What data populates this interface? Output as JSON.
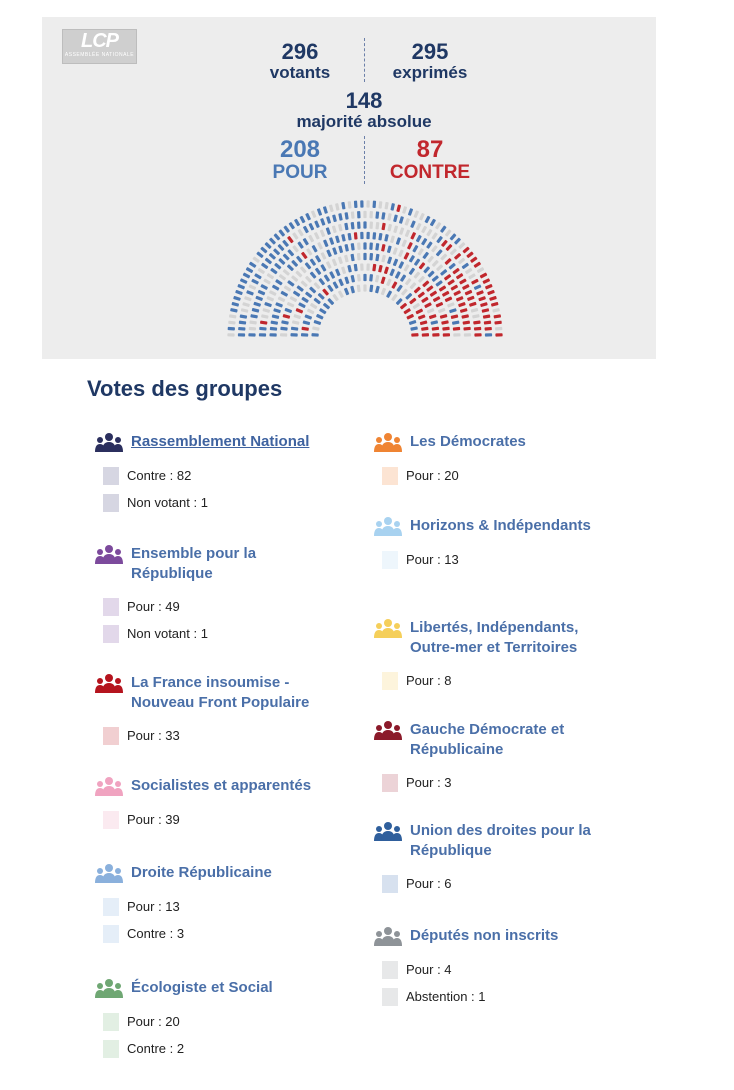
{
  "header": {
    "logo_text": "LCP",
    "logo_subtext": "ASSEMBLÉE NATIONALE",
    "votants": {
      "value": "296",
      "label": "votants"
    },
    "exprimes": {
      "value": "295",
      "label": "exprimés"
    },
    "majorite": {
      "value": "148",
      "label": "majorité absolue"
    },
    "pour": {
      "value": "208",
      "label": "POUR"
    },
    "contre": {
      "value": "87",
      "label": "CONTRE"
    }
  },
  "colors": {
    "pour": "#4a78b4",
    "contre": "#c1272d",
    "empty_seat": "#d4d4d4",
    "title": "#1f3864",
    "link": "#4a6fa8"
  },
  "groups_title": "Votes des groupes",
  "groups_left": [
    {
      "name": "Rassemblement National",
      "icon": "group-people-icon",
      "color": "#2b2f5e",
      "sq": "#d6d6e2",
      "link": true,
      "votes": [
        "Contre : 82",
        "Non votant : 1"
      ]
    },
    {
      "name": "Ensemble pour la République",
      "icon": "group-people-icon",
      "color": "#7c4a9c",
      "sq": "#e2d8ea",
      "votes": [
        "Pour : 49",
        "Non votant : 1"
      ]
    },
    {
      "name": "La France insoumise - Nouveau Front Populaire",
      "icon": "group-people-icon",
      "color": "#b5141e",
      "sq": "#f1cfd1",
      "votes": [
        "Pour : 33"
      ]
    },
    {
      "name": "Socialistes et apparentés",
      "icon": "group-people-icon",
      "color": "#f0a3c0",
      "sq": "#fbeaf0",
      "votes": [
        "Pour : 39"
      ]
    },
    {
      "name": "Droite Républicaine",
      "icon": "group-people-icon",
      "color": "#8ab0dc",
      "sq": "#e5eef8",
      "votes": [
        "Pour : 13",
        "Contre : 3"
      ]
    },
    {
      "name": "Écologiste et Social",
      "icon": "group-people-icon",
      "color": "#6fa773",
      "sq": "#e2efe3",
      "votes": [
        "Pour : 20",
        "Contre : 2"
      ]
    }
  ],
  "groups_right": [
    {
      "name": "Les Démocrates",
      "icon": "group-people-icon",
      "color": "#ef8433",
      "sq": "#fce4d3",
      "votes": [
        "Pour : 20"
      ]
    },
    {
      "name": "Horizons & Indépendants",
      "icon": "group-people-icon",
      "color": "#a8d2f0",
      "sq": "#eef6fc",
      "votes": [
        "Pour : 13"
      ]
    },
    {
      "name": "Libertés, Indépendants, Outre-mer et Territoires",
      "icon": "group-people-icon",
      "color": "#f5cf5a",
      "sq": "#fdf4dc",
      "votes": [
        "Pour : 8"
      ]
    },
    {
      "name": "Gauche Démocrate et Républicaine",
      "icon": "group-people-icon",
      "color": "#8b1a2a",
      "sq": "#ecd3d7",
      "votes": [
        "Pour : 3"
      ]
    },
    {
      "name": "Union des droites pour la République",
      "icon": "group-people-icon",
      "color": "#2f5f9c",
      "sq": "#d7e1ef",
      "votes": [
        "Pour : 6"
      ]
    },
    {
      "name": "Députés non inscrits",
      "icon": "group-people-icon",
      "color": "#8e9398",
      "sq": "#e7e8e9",
      "votes": [
        "Pour : 4",
        "Abstention : 1"
      ]
    }
  ]
}
